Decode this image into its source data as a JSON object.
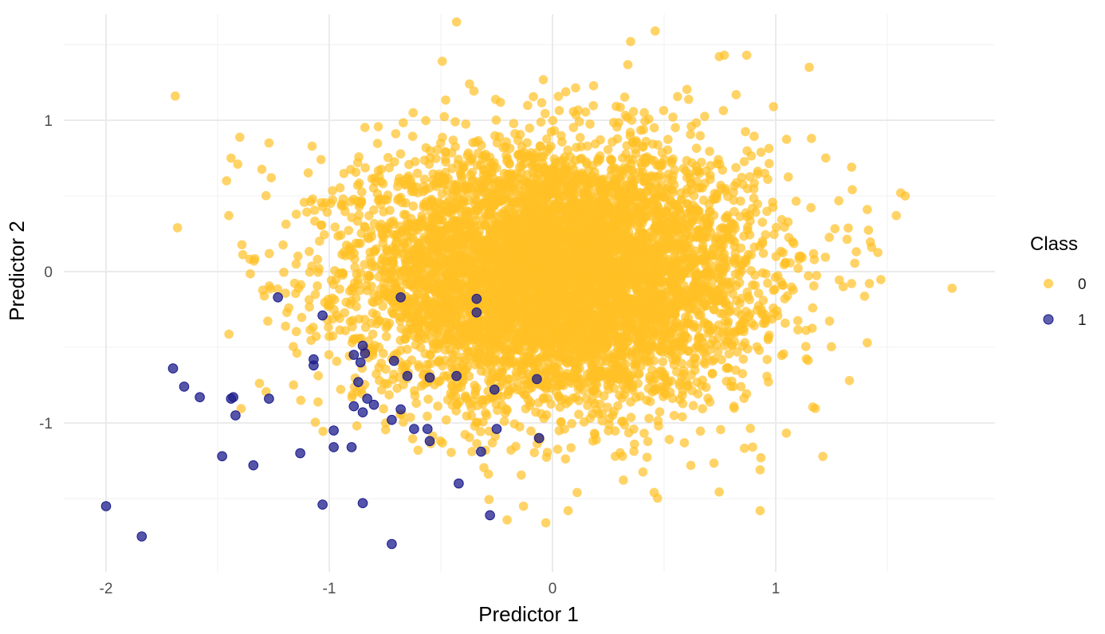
{
  "chart_data": {
    "type": "scatter",
    "xlabel": "Predictor 1",
    "ylabel": "Predictor 2",
    "xlim": [
      -2.1,
      1.95
    ],
    "ylim": [
      -1.85,
      1.6
    ],
    "x_ticks": [
      -2,
      -1,
      0,
      1
    ],
    "x_tick_labels": [
      "-2",
      "-1",
      "0",
      "1"
    ],
    "y_ticks": [
      -1,
      0,
      1
    ],
    "y_tick_labels": [
      "-1",
      "0",
      "1"
    ],
    "grid": true,
    "legend": {
      "title": "Class",
      "placement": "right"
    },
    "series": [
      {
        "name": "0",
        "color": "#FFC125",
        "points_described": "approx. 8000 points, roughly bivariate normal centered near (0, 0), x sd ~0.45, y sd ~0.45",
        "outlier_points": [
          [
            -0.43,
            1.65
          ],
          [
            0.46,
            1.59
          ],
          [
            0.35,
            1.52
          ],
          [
            0.77,
            1.43
          ],
          [
            0.87,
            1.43
          ],
          [
            1.15,
            1.35
          ],
          [
            -1.69,
            1.16
          ],
          [
            -1.68,
            0.29
          ],
          [
            -1.46,
            0.6
          ],
          [
            -1.44,
            0.75
          ],
          [
            -1.41,
            0.71
          ],
          [
            -1.45,
            0.37
          ],
          [
            1.56,
            0.52
          ],
          [
            1.58,
            0.5
          ],
          [
            1.54,
            0.37
          ],
          [
            1.79,
            -0.11
          ],
          [
            1.41,
            0.41
          ],
          [
            1.41,
            -0.47
          ],
          [
            0.93,
            -1.31
          ],
          [
            0.93,
            -1.58
          ],
          [
            -0.03,
            -1.66
          ],
          [
            0.07,
            -1.58
          ],
          [
            -0.13,
            -1.55
          ],
          [
            1.34,
            0.69
          ],
          [
            1.33,
            -0.72
          ],
          [
            -1.19,
            -0.27
          ],
          [
            -1.27,
            0.85
          ],
          [
            -1.26,
            0.62
          ],
          [
            0.99,
            1.09
          ],
          [
            1.16,
            0.88
          ]
        ]
      },
      {
        "name": "1",
        "color": "#1C1C8C",
        "points": [
          [
            -2.0,
            -1.55
          ],
          [
            -1.84,
            -1.75
          ],
          [
            -1.7,
            -0.64
          ],
          [
            -1.65,
            -0.76
          ],
          [
            -1.58,
            -0.83
          ],
          [
            -1.43,
            -0.83
          ],
          [
            -1.44,
            -0.84
          ],
          [
            -1.42,
            -0.95
          ],
          [
            -1.48,
            -1.22
          ],
          [
            -1.34,
            -1.28
          ],
          [
            -1.27,
            -0.84
          ],
          [
            -1.23,
            -0.17
          ],
          [
            -1.13,
            -1.2
          ],
          [
            -1.07,
            -0.58
          ],
          [
            -1.07,
            -0.62
          ],
          [
            -1.03,
            -0.29
          ],
          [
            -1.03,
            -1.54
          ],
          [
            -0.98,
            -1.05
          ],
          [
            -0.98,
            -1.16
          ],
          [
            -0.9,
            -1.16
          ],
          [
            -0.89,
            -0.55
          ],
          [
            -0.86,
            -0.6
          ],
          [
            -0.85,
            -0.49
          ],
          [
            -0.84,
            -0.54
          ],
          [
            -0.87,
            -0.73
          ],
          [
            -0.83,
            -0.84
          ],
          [
            -0.8,
            -0.88
          ],
          [
            -0.89,
            -0.89
          ],
          [
            -0.85,
            -0.93
          ],
          [
            -0.85,
            -1.53
          ],
          [
            -0.71,
            -0.59
          ],
          [
            -0.68,
            -0.17
          ],
          [
            -0.65,
            -0.69
          ],
          [
            -0.68,
            -0.91
          ],
          [
            -0.72,
            -0.98
          ],
          [
            -0.62,
            -1.04
          ],
          [
            -0.56,
            -1.04
          ],
          [
            -0.55,
            -0.7
          ],
          [
            -0.55,
            -1.12
          ],
          [
            -0.43,
            -0.69
          ],
          [
            -0.42,
            -1.4
          ],
          [
            -0.34,
            -0.18
          ],
          [
            -0.34,
            -0.27
          ],
          [
            -0.32,
            -1.19
          ],
          [
            -0.28,
            -1.61
          ],
          [
            -0.26,
            -0.78
          ],
          [
            -0.25,
            -1.04
          ],
          [
            -0.07,
            -0.71
          ],
          [
            -0.06,
            -1.1
          ],
          [
            -0.72,
            -1.8
          ]
        ]
      }
    ]
  }
}
